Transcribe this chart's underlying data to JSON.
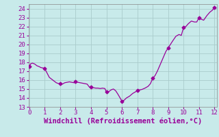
{
  "x": [
    0,
    0.08,
    0.2,
    0.35,
    0.5,
    0.65,
    0.75,
    0.9,
    1.0,
    1.15,
    1.3,
    1.45,
    1.6,
    1.75,
    1.9,
    2.0,
    2.15,
    2.3,
    2.45,
    2.6,
    2.75,
    2.9,
    3.0,
    3.15,
    3.3,
    3.45,
    3.6,
    3.75,
    3.9,
    4.0,
    4.15,
    4.3,
    4.45,
    4.6,
    4.75,
    4.9,
    5.0,
    5.15,
    5.3,
    5.45,
    5.6,
    5.75,
    6.0,
    6.15,
    6.3,
    6.5,
    6.7,
    6.9,
    7.0,
    7.15,
    7.3,
    7.5,
    7.7,
    7.85,
    8.0,
    8.15,
    8.3,
    8.5,
    8.7,
    8.85,
    9.0,
    9.15,
    9.3,
    9.5,
    9.7,
    9.85,
    10.0,
    10.15,
    10.3,
    10.5,
    10.7,
    10.85,
    11.0,
    11.15,
    11.3,
    11.5,
    11.7,
    11.85,
    12.0
  ],
  "y": [
    17.5,
    17.8,
    17.9,
    17.8,
    17.6,
    17.5,
    17.4,
    17.35,
    17.3,
    16.8,
    16.3,
    16.1,
    15.9,
    15.7,
    15.6,
    15.6,
    15.55,
    15.7,
    15.75,
    15.8,
    15.75,
    15.7,
    15.8,
    15.75,
    15.7,
    15.65,
    15.6,
    15.55,
    15.2,
    15.2,
    15.15,
    15.1,
    15.1,
    15.05,
    15.1,
    15.05,
    14.65,
    14.7,
    14.9,
    15.0,
    14.8,
    14.4,
    13.65,
    13.75,
    14.0,
    14.2,
    14.5,
    14.7,
    14.85,
    14.9,
    14.95,
    15.1,
    15.3,
    15.6,
    16.2,
    16.5,
    17.0,
    17.8,
    18.6,
    19.2,
    19.6,
    20.0,
    20.4,
    20.9,
    21.1,
    21.0,
    21.9,
    22.0,
    22.3,
    22.6,
    22.5,
    22.5,
    23.0,
    22.8,
    22.7,
    23.2,
    23.6,
    23.8,
    24.1
  ],
  "marker_x": [
    0,
    1,
    2,
    3,
    4,
    5,
    6,
    7,
    8,
    9,
    10,
    11,
    12
  ],
  "marker_y": [
    17.5,
    17.3,
    15.6,
    15.8,
    15.2,
    14.65,
    13.65,
    14.85,
    16.2,
    19.6,
    21.9,
    23.0,
    24.1
  ],
  "line_color": "#990099",
  "marker_color": "#990099",
  "bg_color": "#c8eaea",
  "grid_color": "#aacccc",
  "text_color": "#990099",
  "spine_color": "#888888",
  "xlim": [
    -0.05,
    12.15
  ],
  "ylim": [
    13,
    24.5
  ],
  "xticks": [
    0,
    1,
    2,
    3,
    4,
    5,
    6,
    7,
    8,
    9,
    10,
    11,
    12
  ],
  "yticks": [
    13,
    14,
    15,
    16,
    17,
    18,
    19,
    20,
    21,
    22,
    23,
    24
  ],
  "xlabel": "Windchill (Refroidissement éolien,°C)",
  "xlabel_fontsize": 7.5,
  "tick_fontsize": 6.5,
  "figsize": [
    3.2,
    2.0
  ],
  "dpi": 100
}
